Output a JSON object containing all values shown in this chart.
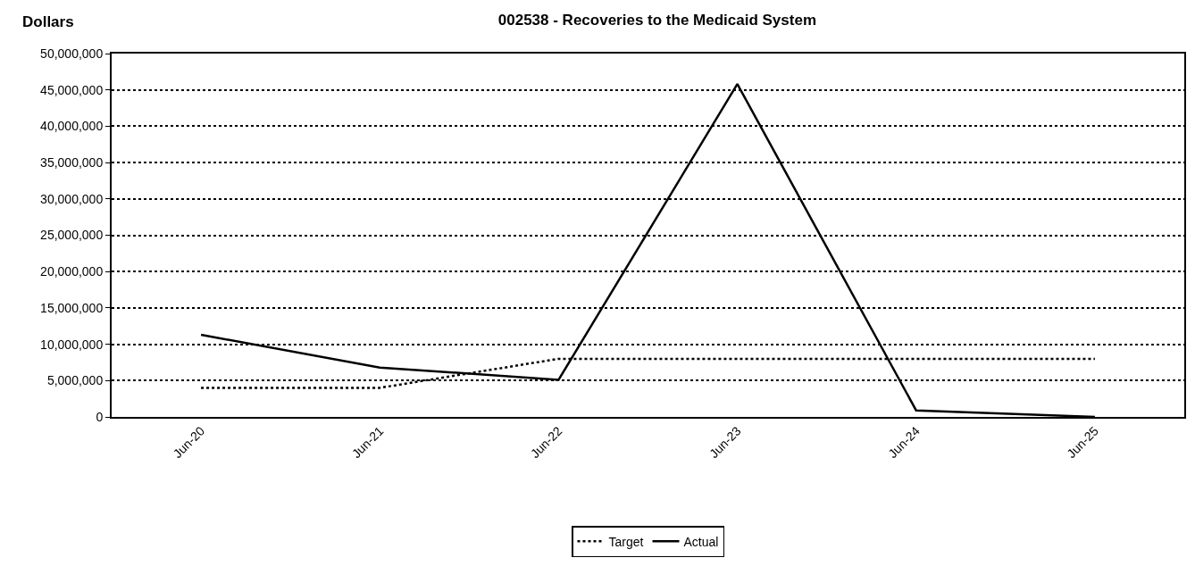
{
  "chart_data": {
    "type": "line",
    "title": "002538 - Recoveries to the Medicaid System",
    "ylabel": "Dollars",
    "categories": [
      "Jun-20",
      "Jun-21",
      "Jun-22",
      "Jun-23",
      "Jun-24",
      "Jun-25"
    ],
    "series": [
      {
        "name": "Target",
        "color": "#000000",
        "line_style": "dotted",
        "values": [
          4000000,
          4000000,
          8000000,
          8000000,
          8000000,
          8000000
        ]
      },
      {
        "name": "Actual",
        "color": "#000000",
        "line_style": "solid",
        "values": [
          11300000,
          6800000,
          5100000,
          45800000,
          900000,
          0
        ]
      }
    ],
    "ylim": [
      0,
      50000000
    ],
    "yticks": [
      0,
      {
        "value": 5000000,
        "label": "5,000,000"
      },
      {
        "value": 10000000,
        "label": "10,000,000"
      },
      {
        "value": 15000000,
        "label": "15,000,000"
      },
      {
        "value": 20000000,
        "label": "20,000,000"
      },
      {
        "value": 25000000,
        "label": "25,000,000"
      },
      {
        "value": 30000000,
        "label": "30,000,000"
      },
      {
        "value": 35000000,
        "label": "35,000,000"
      },
      {
        "value": 40000000,
        "label": "40,000,000"
      },
      {
        "value": 45000000,
        "label": "45,000,000"
      },
      {
        "value": 50000000,
        "label": "50,000,000"
      }
    ],
    "grid": "y",
    "legend": "bottom",
    "marker": "none"
  }
}
